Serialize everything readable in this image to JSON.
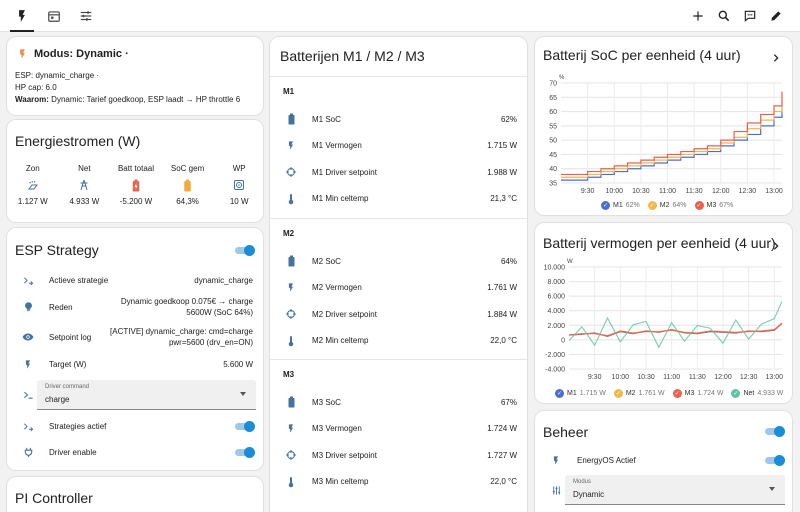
{
  "topbar": {
    "tabs": [
      "energy-tab",
      "calendar-tab",
      "settings-tab"
    ],
    "actions": [
      "plus-icon",
      "search-icon",
      "assist-icon",
      "pencil-icon"
    ]
  },
  "modus": {
    "title": "Modus: Dynamic ·",
    "line1": "ESP: dynamic_charge ·",
    "line2": "HP cap: 6.0",
    "line3_label": "Waarom:",
    "line3_value": " Dynamic: Tarief goedkoop, ESP laadt → HP throttle 6"
  },
  "energy": {
    "title": "Energiestromen (W)",
    "items": [
      {
        "label": "Zon",
        "value": "1.127 W",
        "icon": "solar-icon"
      },
      {
        "label": "Net",
        "value": "4.933 W",
        "icon": "grid-tower-icon"
      },
      {
        "label": "Batt totaal",
        "value": "-5.200 W",
        "icon": "battery-charging-icon"
      },
      {
        "label": "SoC gem",
        "value": "64,3%",
        "icon": "battery-icon"
      },
      {
        "label": "WP",
        "value": "10 W",
        "icon": "heat-pump-icon"
      }
    ]
  },
  "esp": {
    "title": "ESP Strategy",
    "rows": [
      {
        "label": "Actieve strategie",
        "value": "dynamic_charge"
      },
      {
        "label": "Reden",
        "value1": "Dynamic goedkoop 0.075€ → charge",
        "value2": "5600W (SoC 64%)"
      },
      {
        "label": "Setpoint log",
        "value1": "[ACTIVE] dynamic_charge: cmd=charge",
        "value2": "pwr=5600 (drv_en=ON)"
      },
      {
        "label": "Target (W)",
        "value": "5.600 W"
      }
    ],
    "driver_command": {
      "label": "Driver command",
      "value": "charge"
    },
    "strategies_label": "Strategies actief",
    "driver_enable_label": "Driver enable"
  },
  "pi": {
    "title": "PI Controller"
  },
  "batteries": {
    "title": "Batterijen M1 / M2 / M3",
    "groups": [
      {
        "name": "M1",
        "rows": [
          {
            "label": "M1 SoC",
            "value": "62%"
          },
          {
            "label": "M1 Vermogen",
            "value": "1.715 W"
          },
          {
            "label": "M1 Driver setpoint",
            "value": "1.988 W"
          },
          {
            "label": "M1 Min celtemp",
            "value": "21,3 °C"
          }
        ]
      },
      {
        "name": "M2",
        "rows": [
          {
            "label": "M2 SoC",
            "value": "64%"
          },
          {
            "label": "M2 Vermogen",
            "value": "1.761 W"
          },
          {
            "label": "M2 Driver setpoint",
            "value": "1.884 W"
          },
          {
            "label": "M2 Min celtemp",
            "value": "22,0 °C"
          }
        ]
      },
      {
        "name": "M3",
        "rows": [
          {
            "label": "M3 SoC",
            "value": "67%"
          },
          {
            "label": "M3 Vermogen",
            "value": "1.724 W"
          },
          {
            "label": "M3 Driver setpoint",
            "value": "1.727 W"
          },
          {
            "label": "M3 Min celtemp",
            "value": "22,0 °C"
          }
        ]
      }
    ]
  },
  "soc_chart": {
    "title": "Batterij SoC per eenheid (4 uur)",
    "legend": [
      {
        "name": "M1",
        "value": "62%",
        "color": "#4a6fd0"
      },
      {
        "name": "M2",
        "value": "64%",
        "color": "#f2b84b"
      },
      {
        "name": "M3",
        "value": "67%",
        "color": "#e8614f"
      }
    ]
  },
  "power_chart": {
    "title": "Batterij vermogen per eenheid (4 uur)",
    "legend": [
      {
        "name": "M1",
        "value": "1.715 W",
        "color": "#4a6fd0"
      },
      {
        "name": "M2",
        "value": "1.761 W",
        "color": "#f2b84b"
      },
      {
        "name": "M3",
        "value": "1.724 W",
        "color": "#e8614f"
      },
      {
        "name": "Net",
        "value": "4.933 W",
        "color": "#5fc3a3"
      }
    ]
  },
  "beheer": {
    "title": "Beheer",
    "energyos_label": "EnergyOS Actief",
    "modus": {
      "label": "Modus",
      "value": "Dynamic"
    }
  },
  "chart_data": [
    {
      "type": "line",
      "title": "Batterij SoC per eenheid (4 uur)",
      "ylabel": "%",
      "ylim": [
        35,
        70
      ],
      "yticks": [
        "70",
        "65",
        "60",
        "55",
        "50",
        "45",
        "40",
        "35"
      ],
      "xticks": [
        "9:30",
        "10:00",
        "10:30",
        "11:00",
        "11:30",
        "12:00",
        "12:30",
        "13:00"
      ],
      "x": [
        9.0,
        9.25,
        9.5,
        9.75,
        10.0,
        10.25,
        10.5,
        10.75,
        11.0,
        11.25,
        11.5,
        11.75,
        12.0,
        12.25,
        12.5,
        12.75,
        13.0,
        13.15
      ],
      "series": [
        {
          "name": "M1",
          "values": [
            36,
            36,
            37,
            38,
            39,
            40,
            41,
            42,
            43,
            44,
            45,
            46,
            48,
            50,
            52,
            55,
            58,
            62
          ]
        },
        {
          "name": "M2",
          "values": [
            37,
            37,
            38,
            39,
            40,
            41,
            42,
            43,
            44,
            45,
            46,
            47,
            49,
            51,
            54,
            57,
            60,
            64
          ]
        },
        {
          "name": "M3",
          "values": [
            38,
            38,
            39,
            40,
            41,
            42,
            43,
            44,
            45,
            46,
            47,
            48,
            50,
            53,
            56,
            59,
            62,
            67
          ]
        }
      ],
      "legend": "bottom"
    },
    {
      "type": "line",
      "title": "Batterij vermogen per eenheid (4 uur)",
      "ylabel": "W",
      "ylim": [
        -5000,
        10000
      ],
      "yticks": [
        "10.000",
        "8.000",
        "6.000",
        "4.000",
        "2.000",
        "0",
        "-2.000",
        "-4.000"
      ],
      "xticks": [
        "9:30",
        "10:00",
        "10:30",
        "11:00",
        "11:30",
        "12:00",
        "12:30",
        "13:00"
      ],
      "x": [
        9.0,
        9.25,
        9.5,
        9.75,
        10.0,
        10.25,
        10.5,
        10.75,
        11.0,
        11.25,
        11.5,
        11.75,
        12.0,
        12.25,
        12.5,
        12.75,
        13.0,
        13.15
      ],
      "series": [
        {
          "name": "M1",
          "values": [
            0,
            100,
            300,
            -200,
            500,
            200,
            600,
            400,
            800,
            300,
            200,
            500,
            400,
            300,
            600,
            500,
            700,
            1715
          ]
        },
        {
          "name": "M2",
          "values": [
            0,
            200,
            200,
            -100,
            600,
            300,
            500,
            500,
            700,
            400,
            300,
            600,
            500,
            400,
            500,
            600,
            800,
            1761
          ]
        },
        {
          "name": "M3",
          "values": [
            0,
            150,
            250,
            -150,
            550,
            250,
            550,
            450,
            750,
            350,
            250,
            550,
            450,
            350,
            550,
            550,
            750,
            1724
          ]
        },
        {
          "name": "Net",
          "values": [
            -800,
            1200,
            -1500,
            2500,
            -1000,
            1500,
            2000,
            -1800,
            1800,
            -900,
            1400,
            1000,
            -1200,
            2200,
            -600,
            1600,
            2400,
            4933
          ]
        }
      ],
      "legend": "bottom"
    }
  ]
}
